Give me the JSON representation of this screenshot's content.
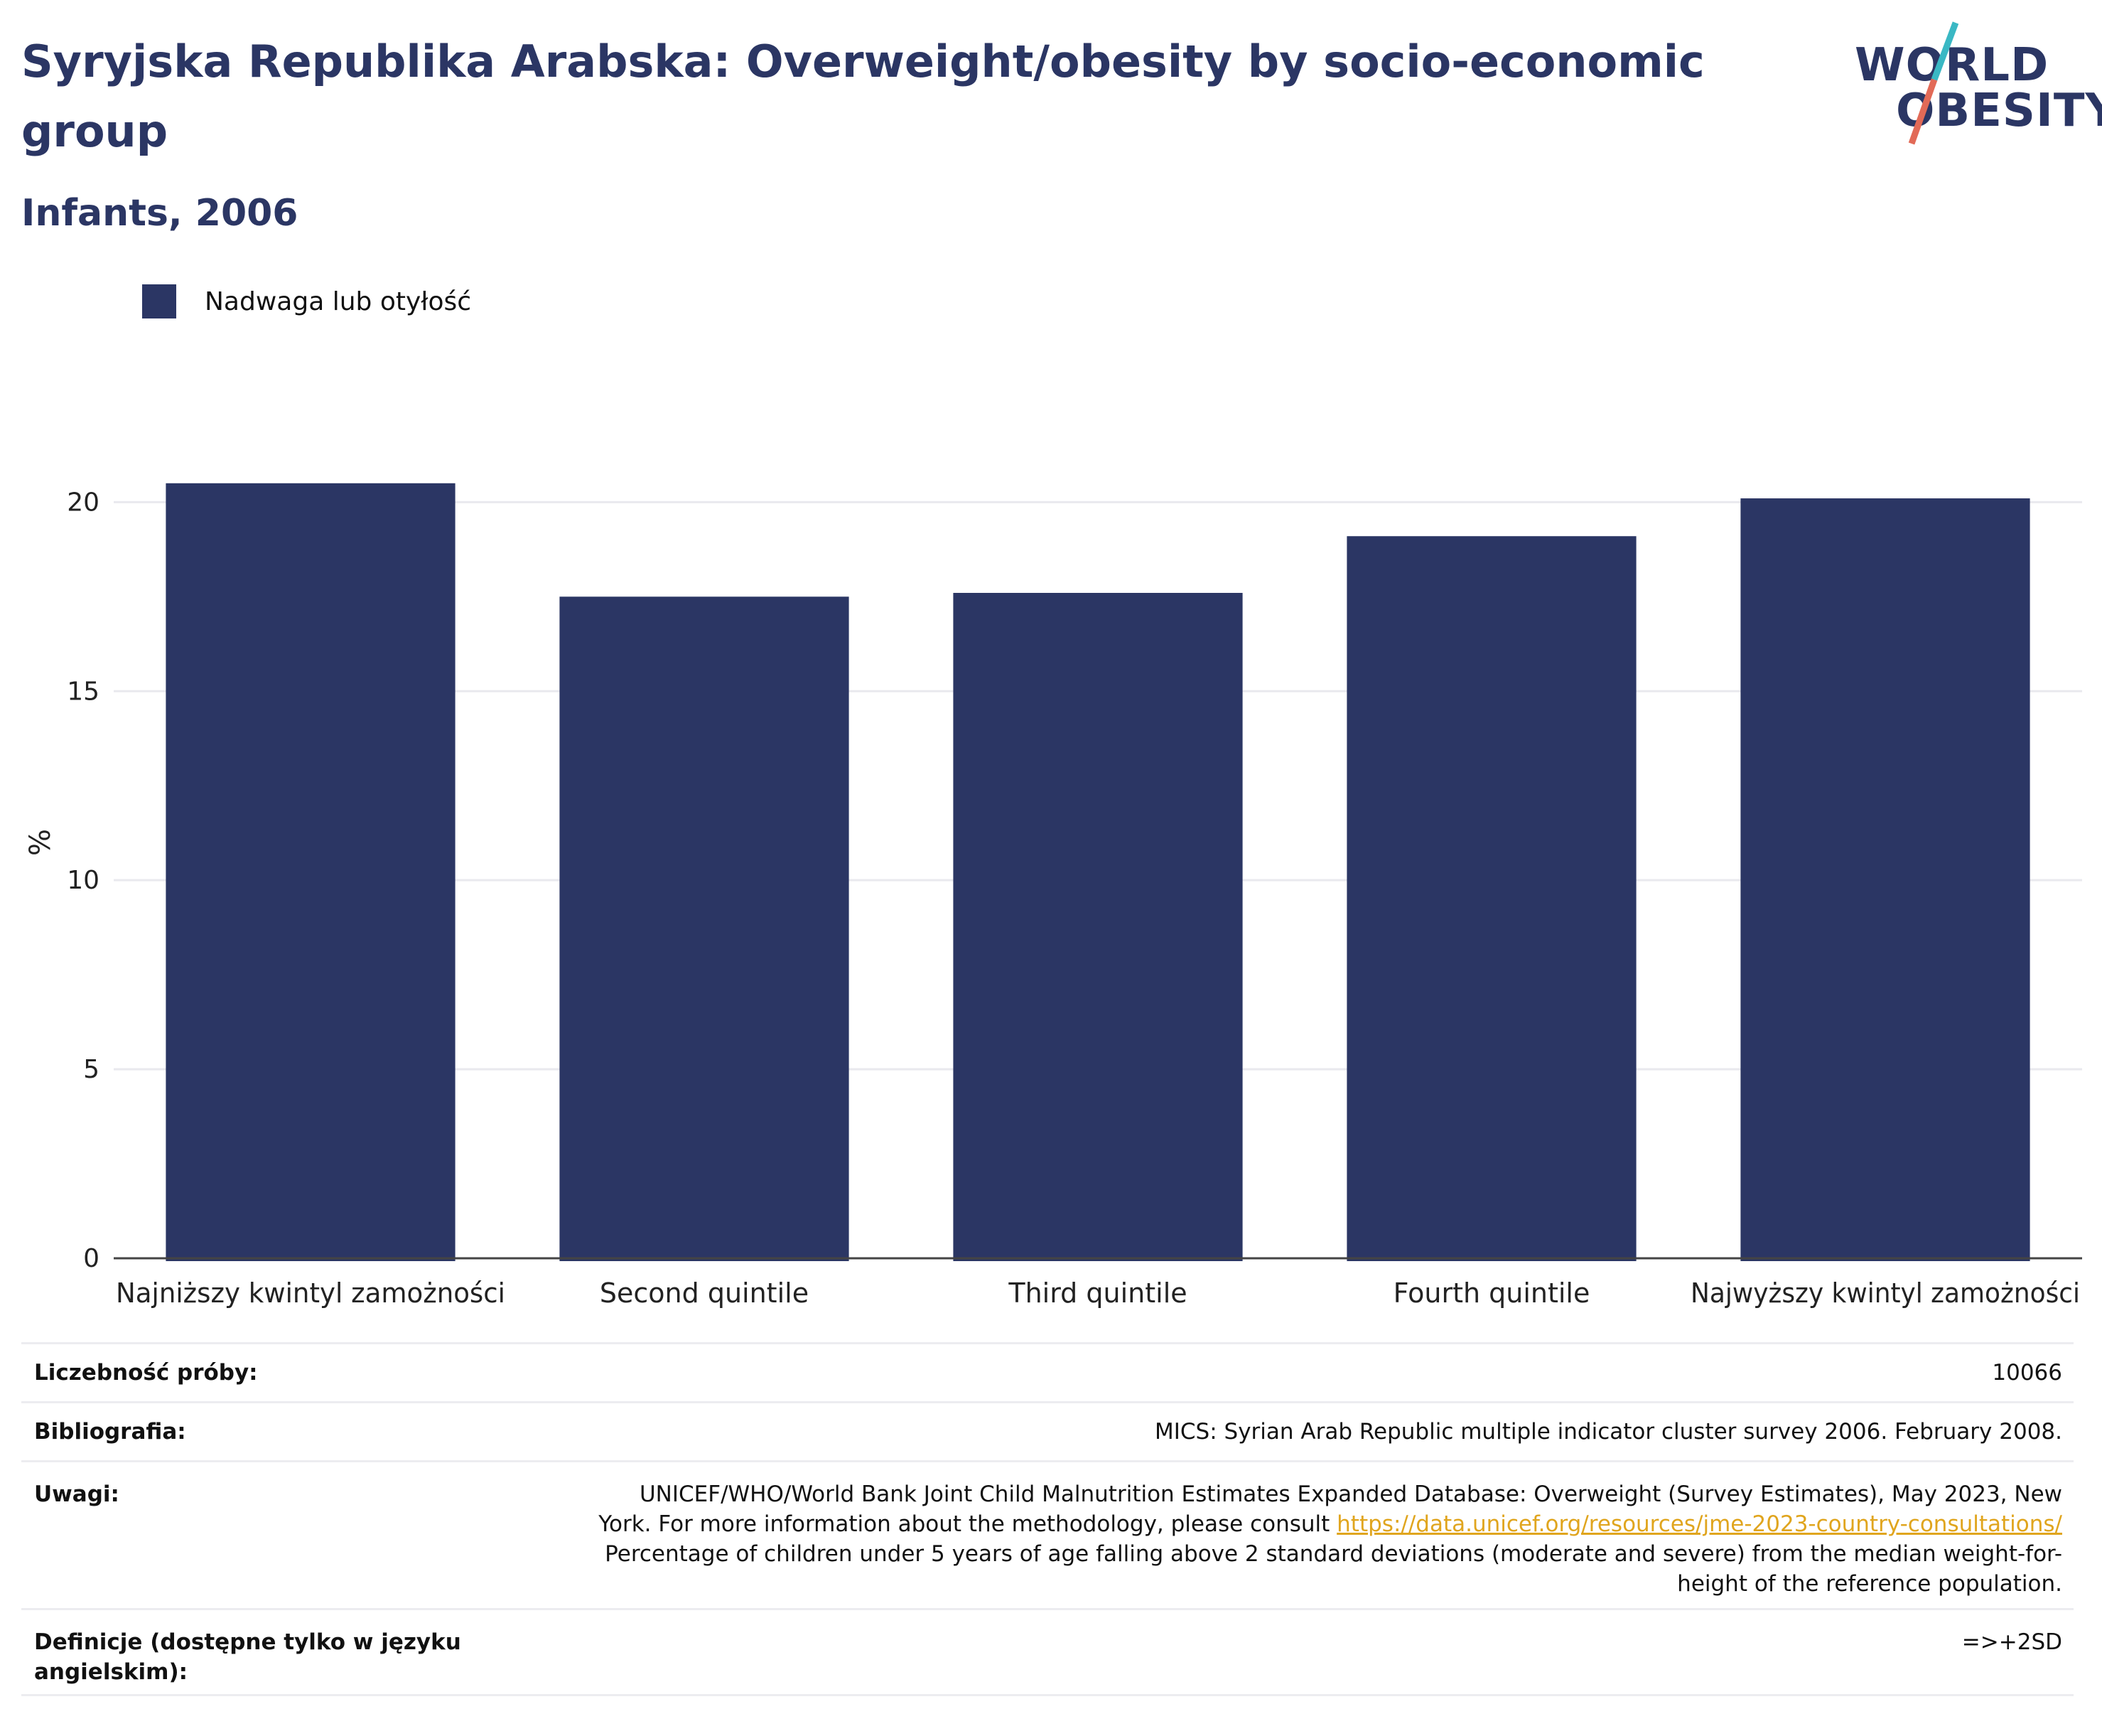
{
  "header": {
    "title": "Syryjska Republika Arabska: Overweight/obesity by socio-economic group",
    "subtitle": "Infants, 2006"
  },
  "logo": {
    "line1": "WORLD",
    "line2": "OBESITY",
    "accent_colors": [
      "#3ab8c4",
      "#e26a57"
    ]
  },
  "legend": {
    "label": "Nadwaga lub otyłość",
    "color": "#2b3664"
  },
  "chart_data": {
    "type": "bar",
    "categories": [
      "Najniższy kwintyl zamożności",
      "Second quintile",
      "Third quintile",
      "Fourth quintile",
      "Najwyższy kwintyl zamożności"
    ],
    "series": [
      {
        "name": "Nadwaga lub otyłość",
        "values": [
          20.5,
          17.5,
          17.6,
          19.1,
          20.1
        ]
      }
    ],
    "ylabel": "%",
    "ylim": [
      0,
      22
    ],
    "yticks": [
      0,
      5,
      10,
      15,
      20
    ],
    "grid": true,
    "legend_position": "top-left",
    "bar_color": "#2b3664"
  },
  "info": {
    "sample_label": "Liczebność próby:",
    "sample_value": "10066",
    "bibliography_label": "Bibliografia:",
    "bibliography_value": "MICS: Syrian Arab Republic multiple indicator cluster survey 2006. February 2008.",
    "notes_label": "Uwagi:",
    "notes_line1": "UNICEF/WHO/World Bank Joint Child Malnutrition Estimates Expanded Database: Overweight (Survey Estimates), May 2023, New",
    "notes_line2": "York. For more information about the methodology, please consult",
    "notes_link": "https://data.unicef.org/resources/jme-2023-country-consultations/",
    "notes_line3": "Percentage of children under 5 years of age falling above 2 standard deviations (moderate and severe) from the median weight-for-",
    "notes_line4": "height of the reference population.",
    "definitions_label": "Definicje (dostępne tylko w języku angielskim):",
    "definitions_value": "=>+2SD"
  }
}
